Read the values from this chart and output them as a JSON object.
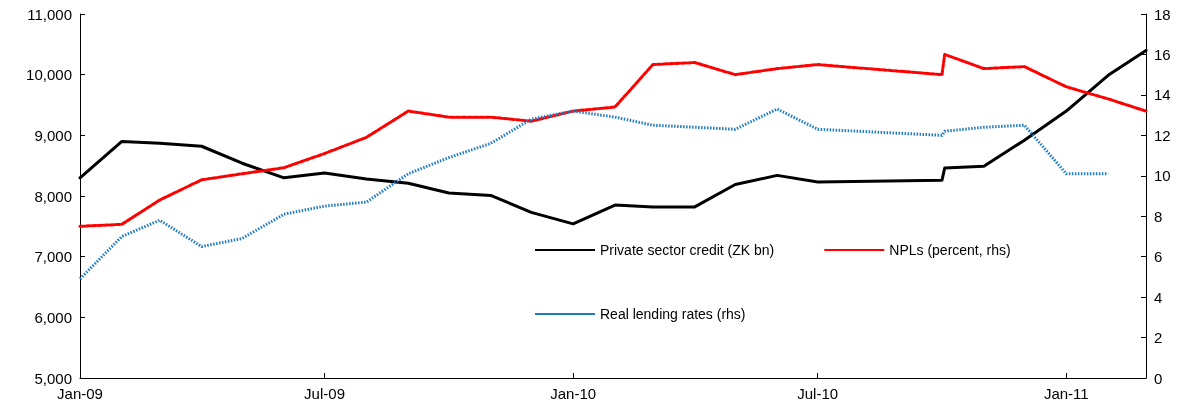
{
  "chart_data": {
    "type": "line",
    "marker": "none",
    "grid": false,
    "legend": "bottom right",
    "xlim": [
      "2009-01-01",
      "2011-03-01"
    ],
    "xticks": [
      {
        "value": "2009-01-01",
        "label": "Jan-09"
      },
      {
        "value": "2009-07-01",
        "label": "Jul-09"
      },
      {
        "value": "2010-01-01",
        "label": "Jan-10"
      },
      {
        "value": "2010-07-01",
        "label": "Jul-10"
      },
      {
        "value": "2011-01-01",
        "label": "Jan-11"
      }
    ],
    "ylim": [
      5000,
      11000
    ],
    "yticks": [
      {
        "value": 5000,
        "label": "5,000"
      },
      {
        "value": 6000,
        "label": "6,000"
      },
      {
        "value": 7000,
        "label": "7,000"
      },
      {
        "value": 8000,
        "label": "8,000"
      },
      {
        "value": 9000,
        "label": "9,000"
      },
      {
        "value": 10000,
        "label": "10,000"
      },
      {
        "value": 11000,
        "label": "11,000"
      }
    ],
    "y2lim": [
      0,
      18
    ],
    "y2ticks": [
      0,
      2,
      4,
      6,
      8,
      10,
      12,
      14,
      16,
      18
    ],
    "series": [
      {
        "name": "Private sector credit (ZK bn)",
        "color": "#000000",
        "line_style": "solid",
        "x": [
          "2009-01-01",
          "2009-02-01",
          "2009-03-01",
          "2009-04-01",
          "2009-05-01",
          "2009-06-01",
          "2009-07-01",
          "2009-08-01",
          "2009-09-01",
          "2009-10-01",
          "2009-11-01",
          "2009-12-01",
          "2010-01-01",
          "2010-02-01",
          "2010-03-01",
          "2010-04-01",
          "2010-05-01",
          "2010-06-01",
          "2010-07-01",
          "2010-10-01",
          "2010-10-03",
          "2010-11-01",
          "2010-12-01",
          "2011-01-01",
          "2011-02-01",
          "2011-03-01"
        ],
        "values": [
          8300,
          8900,
          8870,
          8820,
          8540,
          8300,
          8380,
          8280,
          8210,
          8050,
          8010,
          7730,
          7540,
          7850,
          7820,
          7820,
          8190,
          8340,
          8230,
          8260,
          8460,
          8490,
          8920,
          9400,
          9990,
          10400
        ]
      },
      {
        "name": "NPLs (percent, rhs)",
        "color": "#ff0000",
        "line_style": "dashed",
        "axis": "y2",
        "x": [
          "2009-01-01",
          "2009-02-01",
          "2009-03-01",
          "2009-04-01",
          "2009-05-01",
          "2009-06-01",
          "2009-07-01",
          "2009-08-01",
          "2009-09-01",
          "2009-10-01",
          "2009-11-01",
          "2009-12-01",
          "2010-01-01",
          "2010-02-01",
          "2010-03-01",
          "2010-04-01",
          "2010-05-01",
          "2010-06-01",
          "2010-07-01",
          "2010-10-01",
          "2010-10-03",
          "2010-11-01",
          "2010-12-01",
          "2011-01-01",
          "2011-02-01",
          "2011-03-01"
        ],
        "values": [
          7.5,
          7.6,
          8.8,
          9.8,
          10.1,
          10.4,
          11.1,
          11.9,
          13.2,
          12.9,
          12.9,
          12.7,
          13.2,
          13.4,
          15.5,
          15.6,
          15.0,
          15.3,
          15.5,
          15.0,
          16.0,
          15.3,
          15.4,
          14.4,
          13.8,
          13.2
        ]
      },
      {
        "name": "Real lending rates (rhs)",
        "color": "#1f7bc4",
        "line_style": "dotted",
        "axis": "y2",
        "x": [
          "2009-01-01",
          "2009-02-01",
          "2009-03-01",
          "2009-04-01",
          "2009-05-01",
          "2009-06-01",
          "2009-07-01",
          "2009-08-01",
          "2009-09-01",
          "2009-10-01",
          "2009-11-01",
          "2009-12-01",
          "2010-01-01",
          "2010-02-01",
          "2010-03-01",
          "2010-04-01",
          "2010-05-01",
          "2010-06-01",
          "2010-07-01",
          "2010-10-01",
          "2010-10-03",
          "2010-11-01",
          "2010-12-01",
          "2011-01-01",
          "2011-02-01"
        ],
        "values": [
          4.9,
          7.0,
          7.8,
          6.5,
          6.9,
          8.1,
          8.5,
          8.7,
          10.1,
          10.9,
          11.6,
          12.8,
          13.2,
          12.9,
          12.5,
          12.4,
          12.3,
          13.3,
          12.3,
          12.0,
          12.2,
          12.4,
          12.5,
          10.1,
          10.1
        ]
      }
    ]
  }
}
